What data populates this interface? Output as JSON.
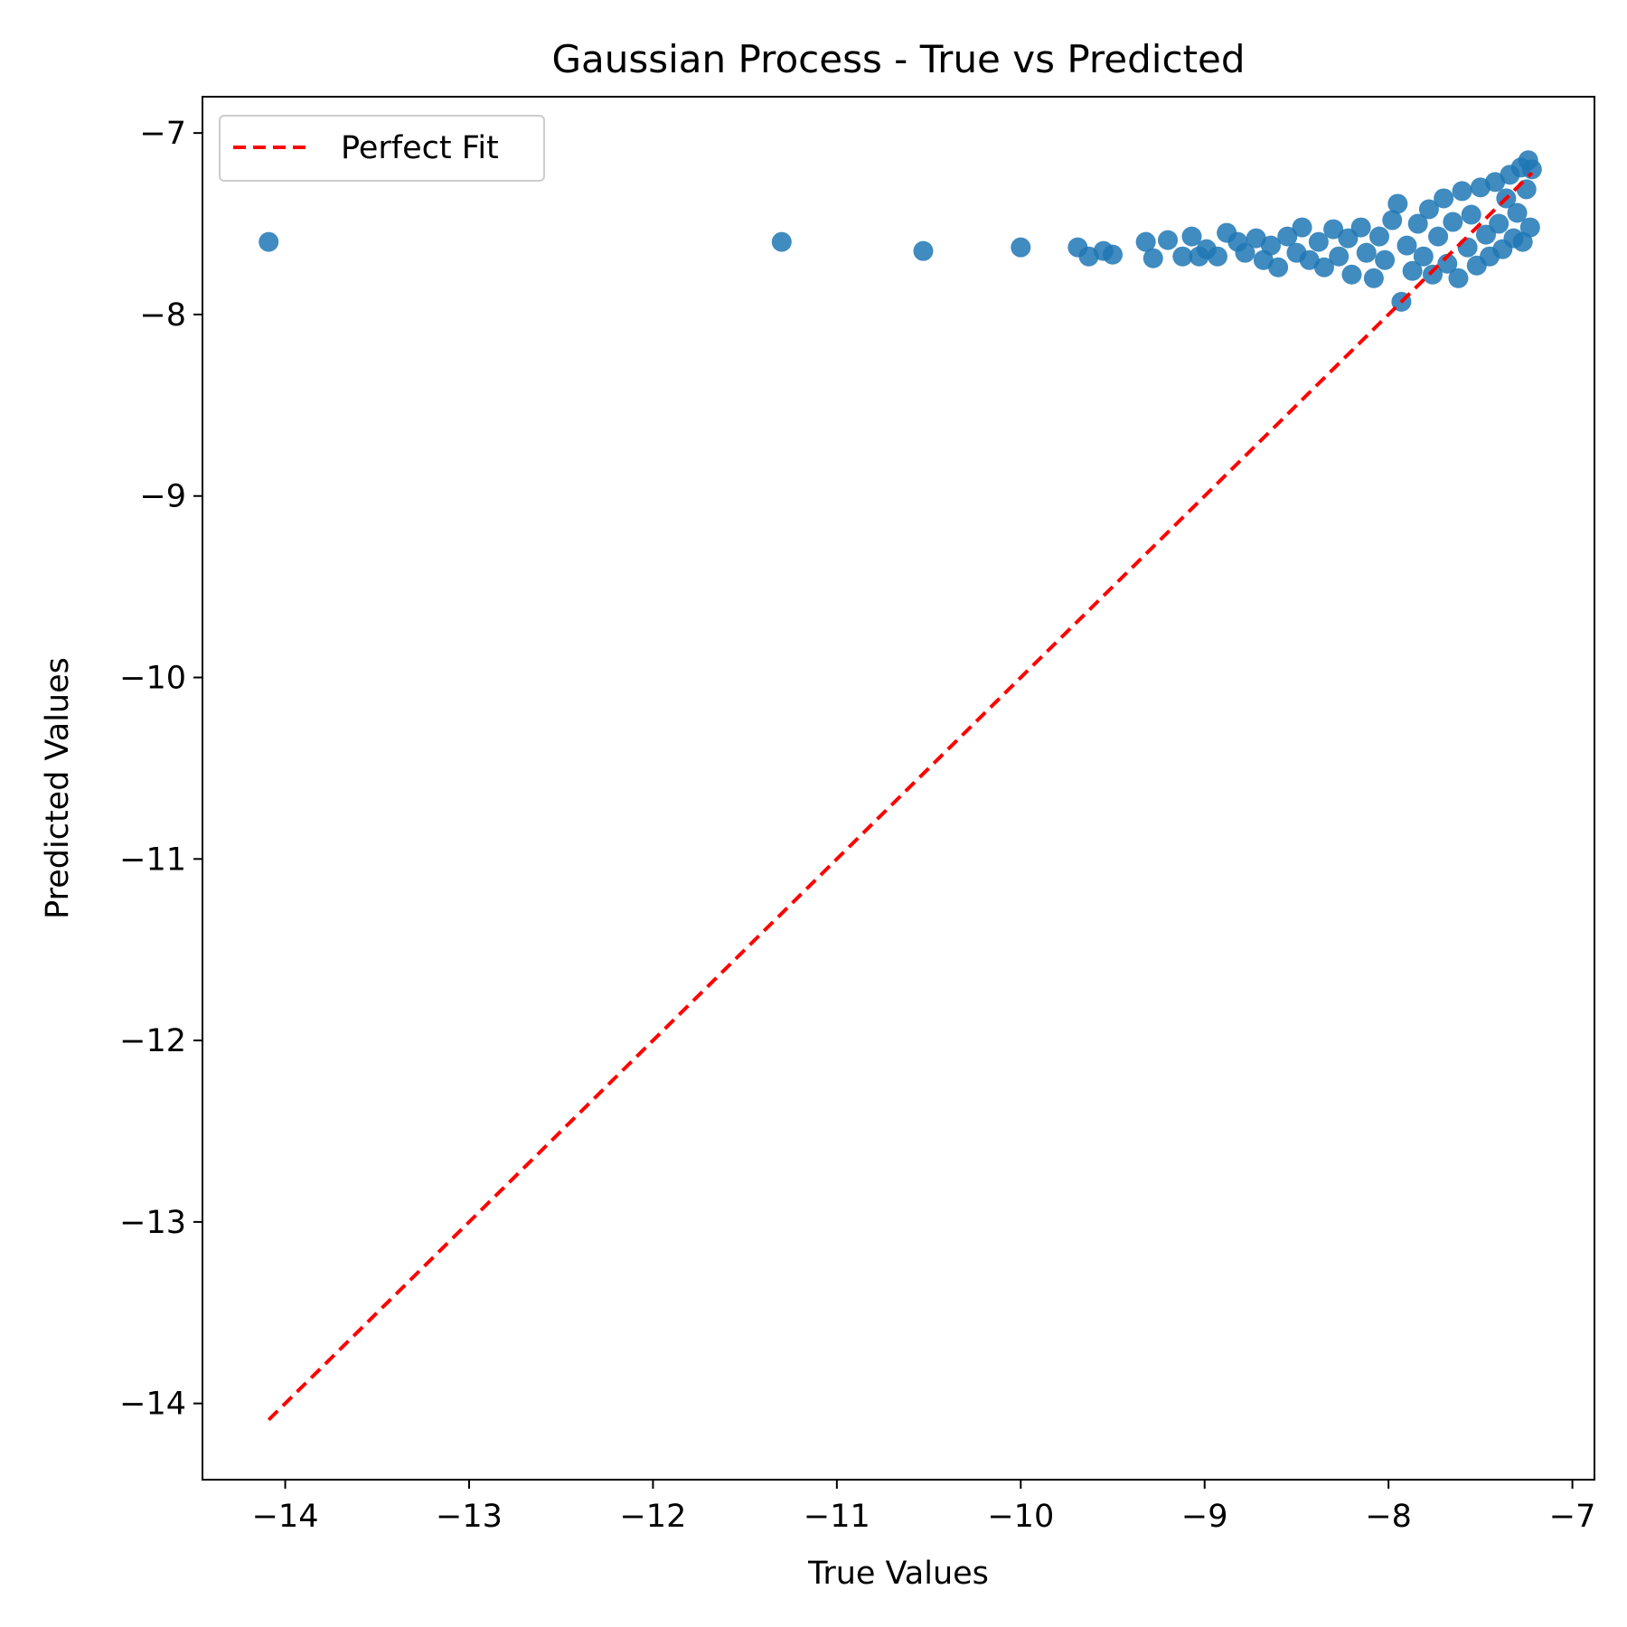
{
  "chart_data": {
    "type": "scatter",
    "title": "Gaussian Process - True vs Predicted",
    "xlabel": "True Values",
    "ylabel": "Predicted Values",
    "xlim": [
      -14.45,
      -6.88
    ],
    "ylim": [
      -14.42,
      -6.8
    ],
    "xticks": [
      -14,
      -13,
      -12,
      -11,
      -10,
      -9,
      -8,
      -7
    ],
    "xtick_labels": [
      "−14",
      "−13",
      "−12",
      "−11",
      "−10",
      "−9",
      "−8",
      "−7"
    ],
    "yticks": [
      -7,
      -8,
      -9,
      -10,
      -11,
      -12,
      -13,
      -14
    ],
    "ytick_labels": [
      "−7",
      "−8",
      "−9",
      "−10",
      "−11",
      "−12",
      "−13",
      "−14"
    ],
    "grid": false,
    "legend_position": "upper-left",
    "scatter_color": "#1f77b4",
    "line_color": "#ff0000",
    "legend": [
      {
        "label": "Perfect Fit",
        "style": "dashed",
        "color": "#ff0000"
      }
    ],
    "perfect_fit_line": {
      "x": [
        -14.09,
        -7.22
      ],
      "y": [
        -14.09,
        -7.22
      ]
    },
    "points": [
      {
        "x": -14.09,
        "y": -7.6
      },
      {
        "x": -11.3,
        "y": -7.6
      },
      {
        "x": -10.53,
        "y": -7.65
      },
      {
        "x": -10.0,
        "y": -7.63
      },
      {
        "x": -9.69,
        "y": -7.63
      },
      {
        "x": -9.63,
        "y": -7.68
      },
      {
        "x": -9.55,
        "y": -7.65
      },
      {
        "x": -9.5,
        "y": -7.67
      },
      {
        "x": -9.32,
        "y": -7.6
      },
      {
        "x": -9.28,
        "y": -7.69
      },
      {
        "x": -9.2,
        "y": -7.59
      },
      {
        "x": -9.12,
        "y": -7.68
      },
      {
        "x": -9.07,
        "y": -7.57
      },
      {
        "x": -9.03,
        "y": -7.68
      },
      {
        "x": -8.99,
        "y": -7.64
      },
      {
        "x": -8.93,
        "y": -7.68
      },
      {
        "x": -8.88,
        "y": -7.55
      },
      {
        "x": -8.82,
        "y": -7.6
      },
      {
        "x": -8.78,
        "y": -7.66
      },
      {
        "x": -8.72,
        "y": -7.58
      },
      {
        "x": -8.68,
        "y": -7.7
      },
      {
        "x": -8.64,
        "y": -7.62
      },
      {
        "x": -8.6,
        "y": -7.74
      },
      {
        "x": -8.55,
        "y": -7.57
      },
      {
        "x": -8.5,
        "y": -7.66
      },
      {
        "x": -8.47,
        "y": -7.52
      },
      {
        "x": -8.43,
        "y": -7.7
      },
      {
        "x": -8.38,
        "y": -7.6
      },
      {
        "x": -8.35,
        "y": -7.74
      },
      {
        "x": -8.3,
        "y": -7.53
      },
      {
        "x": -8.27,
        "y": -7.68
      },
      {
        "x": -8.22,
        "y": -7.58
      },
      {
        "x": -8.2,
        "y": -7.78
      },
      {
        "x": -8.15,
        "y": -7.52
      },
      {
        "x": -8.12,
        "y": -7.66
      },
      {
        "x": -8.08,
        "y": -7.8
      },
      {
        "x": -8.05,
        "y": -7.57
      },
      {
        "x": -8.02,
        "y": -7.7
      },
      {
        "x": -7.98,
        "y": -7.48
      },
      {
        "x": -7.95,
        "y": -7.39
      },
      {
        "x": -7.93,
        "y": -7.93
      },
      {
        "x": -7.9,
        "y": -7.62
      },
      {
        "x": -7.87,
        "y": -7.76
      },
      {
        "x": -7.84,
        "y": -7.5
      },
      {
        "x": -7.81,
        "y": -7.68
      },
      {
        "x": -7.78,
        "y": -7.42
      },
      {
        "x": -7.76,
        "y": -7.78
      },
      {
        "x": -7.73,
        "y": -7.57
      },
      {
        "x": -7.7,
        "y": -7.36
      },
      {
        "x": -7.68,
        "y": -7.72
      },
      {
        "x": -7.65,
        "y": -7.49
      },
      {
        "x": -7.62,
        "y": -7.8
      },
      {
        "x": -7.6,
        "y": -7.32
      },
      {
        "x": -7.57,
        "y": -7.63
      },
      {
        "x": -7.55,
        "y": -7.45
      },
      {
        "x": -7.52,
        "y": -7.73
      },
      {
        "x": -7.5,
        "y": -7.3
      },
      {
        "x": -7.47,
        "y": -7.56
      },
      {
        "x": -7.45,
        "y": -7.68
      },
      {
        "x": -7.42,
        "y": -7.27
      },
      {
        "x": -7.4,
        "y": -7.5
      },
      {
        "x": -7.38,
        "y": -7.64
      },
      {
        "x": -7.36,
        "y": -7.36
      },
      {
        "x": -7.34,
        "y": -7.23
      },
      {
        "x": -7.32,
        "y": -7.58
      },
      {
        "x": -7.3,
        "y": -7.44
      },
      {
        "x": -7.28,
        "y": -7.19
      },
      {
        "x": -7.27,
        "y": -7.6
      },
      {
        "x": -7.25,
        "y": -7.31
      },
      {
        "x": -7.24,
        "y": -7.15
      },
      {
        "x": -7.23,
        "y": -7.52
      },
      {
        "x": -7.22,
        "y": -7.2
      }
    ]
  }
}
